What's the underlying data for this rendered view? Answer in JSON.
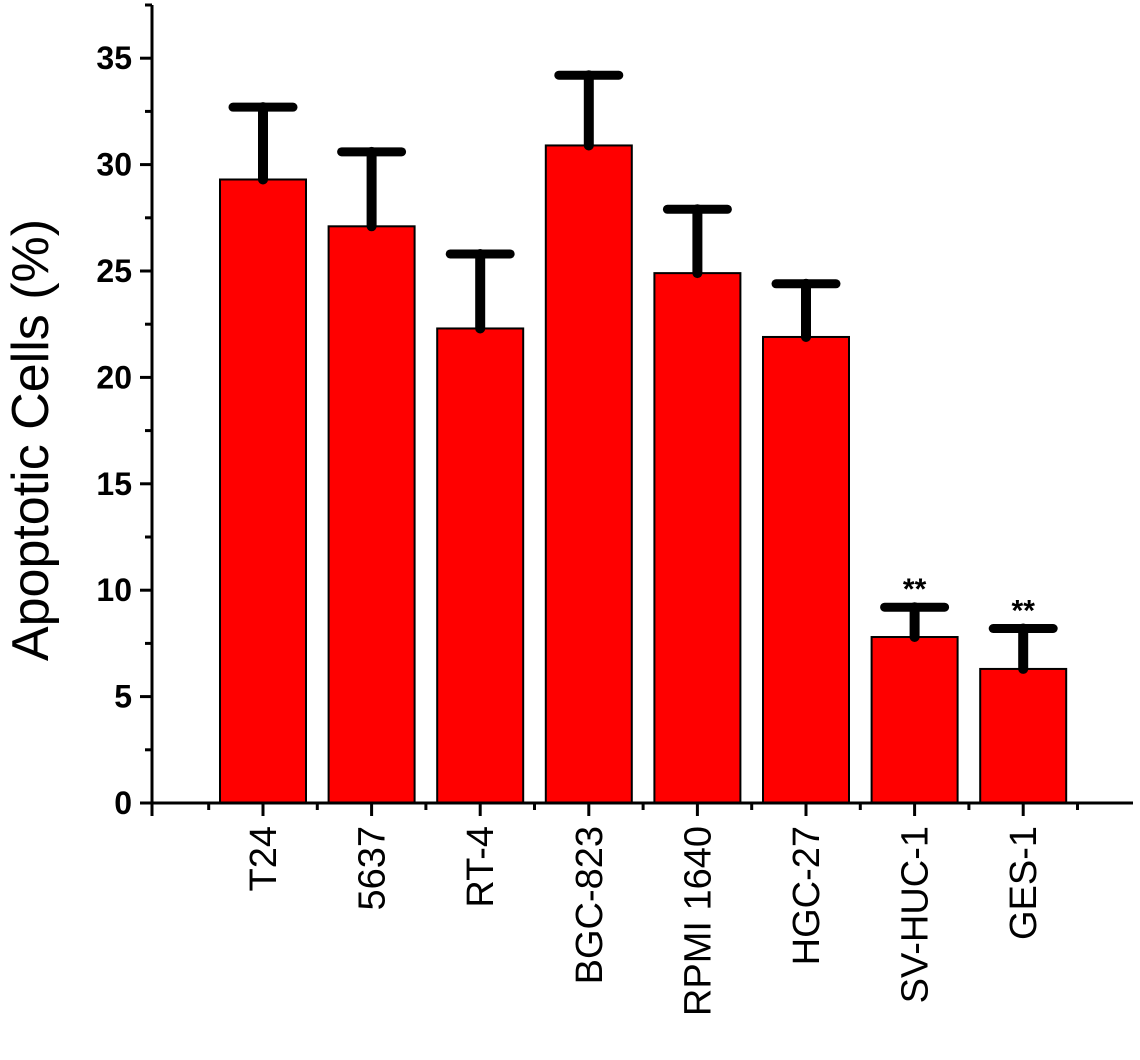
{
  "chart_data": {
    "type": "bar",
    "title": "",
    "xlabel": "",
    "ylabel": "Apoptotic Cells (%)",
    "ylim": [
      0,
      37.5
    ],
    "yticks": [
      0,
      5,
      10,
      15,
      20,
      25,
      30,
      35
    ],
    "grid": false,
    "legend": "none",
    "categories": [
      "T24",
      "5637",
      "RT-4",
      "BGC-823",
      "RPMI 1640",
      "HGC-27",
      "SV-HUC-1",
      "GES-1"
    ],
    "series": [
      {
        "values": [
          29.3,
          27.1,
          22.3,
          30.9,
          24.9,
          21.9,
          7.8,
          6.3
        ],
        "error": [
          3.4,
          3.5,
          3.5,
          3.3,
          3.0,
          2.5,
          1.4,
          1.9
        ],
        "color": "#ff0000"
      }
    ],
    "annotations": [
      "",
      "",
      "",
      "",
      "",
      "",
      "**",
      "**"
    ]
  }
}
